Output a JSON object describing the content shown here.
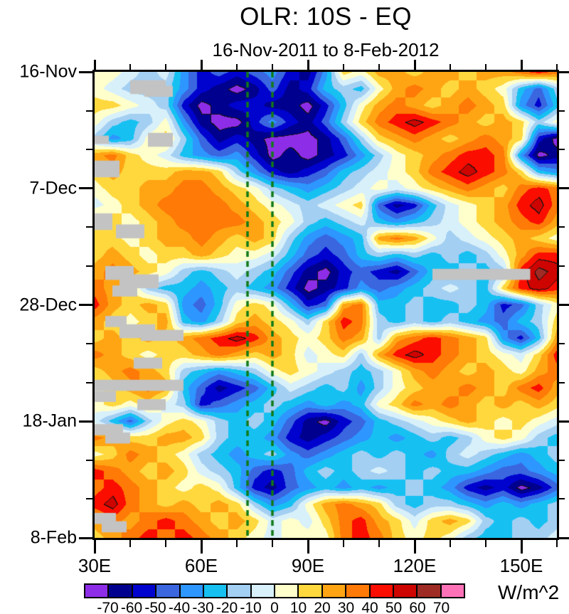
{
  "chart": {
    "title": "OLR: 10S - EQ",
    "subtitle": "16-Nov-2011 to 8-Feb-2012",
    "colorbar_unit": "W/m^2"
  },
  "chart_data": {
    "type": "heatmap",
    "title": "OLR: 10S - EQ",
    "subtitle": "16-Nov-2011 to 8-Feb-2012",
    "description": "Time-longitude (Hovmoller) plot of OLR anomalies averaged 10S-EQ",
    "x_axis": {
      "label_suffix": "E",
      "range": [
        30,
        160
      ],
      "major_ticks": [
        {
          "value": 30,
          "label": "30E"
        },
        {
          "value": 60,
          "label": "60E"
        },
        {
          "value": 90,
          "label": "90E"
        },
        {
          "value": 120,
          "label": "120E"
        },
        {
          "value": 150,
          "label": "150E"
        }
      ],
      "minor_ticks": [
        40,
        50,
        70,
        80,
        100,
        110,
        130,
        140,
        160
      ]
    },
    "y_axis": {
      "range_days": [
        0,
        84
      ],
      "major_ticks": [
        {
          "day": 0,
          "label": "16-Nov"
        },
        {
          "day": 21,
          "label": "7-Dec"
        },
        {
          "day": 42,
          "label": "28-Dec"
        },
        {
          "day": 63,
          "label": "18-Jan"
        },
        {
          "day": 84,
          "label": "8-Feb"
        }
      ],
      "minor_ticks": [
        7,
        14,
        28,
        35,
        49,
        56,
        70,
        77
      ]
    },
    "colorbar": {
      "unit": "W/m^2",
      "tick_labels": [
        "-70",
        "-60",
        "-50",
        "-40",
        "-30",
        "-20",
        "-10",
        "0",
        "10",
        "20",
        "30",
        "40",
        "50",
        "60",
        "70"
      ],
      "colors": [
        "#8D2DE8",
        "#00008F",
        "#0003CE",
        "#3A66E0",
        "#2E96FF",
        "#16C1F2",
        "#A3CFF2",
        "#D8F0FA",
        "#FFFFCC",
        "#FFD83E",
        "#FFA513",
        "#FF7A06",
        "#FB0D00",
        "#CE0400",
        "#9E2B24",
        "#FF72B8"
      ]
    },
    "missing_color": "#C3C3C3",
    "outline_color": "#141414",
    "reference_lines": {
      "lons": [
        73,
        80
      ],
      "color": "#107A18",
      "dash": [
        8,
        6
      ],
      "width": 3.5
    },
    "grid": {
      "lons": [
        30,
        35,
        40,
        45,
        50,
        55,
        60,
        65,
        70,
        75,
        80,
        85,
        90,
        95,
        100,
        105,
        110,
        115,
        120,
        125,
        130,
        135,
        140,
        145,
        150,
        155,
        160
      ],
      "days": [
        0,
        3,
        6,
        9,
        12,
        15,
        18,
        21,
        24,
        27,
        30,
        33,
        36,
        39,
        42,
        45,
        48,
        51,
        54,
        57,
        60,
        63,
        66,
        69,
        72,
        75,
        78,
        81,
        84
      ],
      "values": [
        [
          5,
          5,
          -5,
          -15,
          -5,
          -35,
          -55,
          -45,
          -55,
          -45,
          -35,
          -55,
          -65,
          -35,
          15,
          5,
          25,
          25,
          15,
          25,
          25,
          15,
          25,
          25,
          35,
          45,
          35
        ],
        [
          5,
          -5,
          -15,
          -15,
          -15,
          -35,
          -55,
          -65,
          -75,
          -65,
          -45,
          -65,
          -55,
          -25,
          -15,
          -25,
          5,
          25,
          35,
          25,
          15,
          25,
          15,
          5,
          -25,
          -45,
          -15
        ],
        [
          15,
          15,
          5,
          -5,
          -15,
          -55,
          -75,
          -65,
          -55,
          -55,
          -65,
          -65,
          -75,
          -55,
          -25,
          5,
          25,
          35,
          25,
          15,
          25,
          35,
          25,
          15,
          -35,
          -55,
          -25
        ],
        [
          5,
          -15,
          -25,
          -15,
          5,
          -35,
          -65,
          -75,
          -75,
          -55,
          -35,
          -55,
          -65,
          -45,
          -15,
          15,
          35,
          45,
          55,
          45,
          35,
          25,
          15,
          25,
          15,
          -15,
          5
        ],
        [
          -15,
          -35,
          -25,
          5,
          15,
          -15,
          -45,
          -65,
          -55,
          -65,
          -75,
          -75,
          -75,
          -65,
          -45,
          -15,
          15,
          25,
          35,
          25,
          15,
          25,
          35,
          25,
          15,
          -55,
          -75
        ],
        [
          25,
          35,
          15,
          5,
          -5,
          -25,
          -35,
          -45,
          -35,
          -55,
          -75,
          -65,
          -75,
          -65,
          -55,
          -35,
          -15,
          5,
          15,
          25,
          35,
          45,
          45,
          35,
          -35,
          -75,
          -65
        ],
        [
          15,
          25,
          15,
          15,
          15,
          25,
          25,
          15,
          -15,
          -35,
          -55,
          -65,
          -55,
          -45,
          -25,
          -15,
          -5,
          5,
          15,
          35,
          45,
          55,
          45,
          35,
          15,
          -25,
          -35
        ],
        [
          5,
          15,
          15,
          25,
          25,
          35,
          35,
          25,
          15,
          5,
          -15,
          -25,
          -35,
          -25,
          -15,
          -5,
          5,
          -5,
          5,
          15,
          25,
          35,
          25,
          15,
          35,
          45,
          35
        ],
        [
          -5,
          5,
          15,
          25,
          35,
          35,
          35,
          35,
          25,
          15,
          5,
          -5,
          -15,
          -5,
          5,
          15,
          -45,
          -65,
          -55,
          -25,
          -5,
          5,
          15,
          25,
          45,
          55,
          35
        ],
        [
          25,
          15,
          5,
          15,
          25,
          35,
          35,
          35,
          35,
          25,
          15,
          5,
          -15,
          -25,
          -15,
          -5,
          -25,
          -35,
          -25,
          -15,
          -5,
          5,
          15,
          25,
          35,
          45,
          25
        ],
        [
          15,
          15,
          5,
          15,
          25,
          25,
          35,
          25,
          15,
          25,
          15,
          -15,
          -35,
          -45,
          -35,
          -25,
          25,
          35,
          25,
          5,
          -15,
          -5,
          5,
          15,
          25,
          15,
          5
        ],
        [
          15,
          25,
          15,
          5,
          15,
          15,
          25,
          15,
          5,
          5,
          -5,
          -25,
          -45,
          -55,
          -45,
          -25,
          -15,
          -25,
          -15,
          -25,
          -15,
          -25,
          -15,
          5,
          25,
          45,
          45
        ],
        [
          25,
          35,
          25,
          15,
          5,
          -15,
          -25,
          -15,
          -5,
          -15,
          -25,
          -45,
          -65,
          -75,
          -55,
          -45,
          -55,
          -65,
          -45,
          -25,
          -25,
          -15,
          -25,
          -15,
          45,
          65,
          55
        ],
        [
          35,
          25,
          15,
          -15,
          -25,
          -25,
          -35,
          -25,
          -15,
          -25,
          -35,
          -55,
          -75,
          -65,
          -55,
          -35,
          -45,
          -35,
          -25,
          -15,
          -5,
          -15,
          -25,
          15,
          45,
          55,
          45
        ],
        [
          45,
          25,
          15,
          25,
          15,
          -35,
          -45,
          -25,
          5,
          15,
          5,
          -25,
          -55,
          -45,
          25,
          35,
          -25,
          -25,
          -15,
          -25,
          -25,
          -15,
          -25,
          -55,
          -45,
          -15,
          5
        ],
        [
          25,
          15,
          5,
          15,
          25,
          -25,
          -35,
          -15,
          15,
          25,
          15,
          5,
          -15,
          15,
          45,
          35,
          -15,
          -25,
          -15,
          -25,
          -15,
          -25,
          -35,
          -45,
          -25,
          -15,
          15
        ],
        [
          15,
          25,
          15,
          25,
          15,
          25,
          35,
          45,
          55,
          45,
          25,
          15,
          5,
          15,
          35,
          25,
          -15,
          25,
          35,
          45,
          35,
          25,
          15,
          -35,
          -55,
          -25,
          25
        ],
        [
          35,
          25,
          15,
          5,
          15,
          15,
          25,
          35,
          25,
          15,
          25,
          15,
          -5,
          5,
          15,
          -15,
          25,
          45,
          55,
          45,
          35,
          25,
          15,
          5,
          -5,
          15,
          45
        ],
        [
          15,
          25,
          35,
          25,
          15,
          -15,
          -25,
          -35,
          -25,
          -15,
          5,
          15,
          5,
          -5,
          -15,
          -25,
          -15,
          5,
          25,
          35,
          25,
          15,
          25,
          15,
          5,
          25,
          35
        ],
        [
          5,
          15,
          25,
          35,
          25,
          -25,
          -45,
          -65,
          -55,
          -45,
          -25,
          -5,
          -15,
          -25,
          -15,
          -35,
          -15,
          5,
          15,
          25,
          25,
          35,
          25,
          15,
          35,
          45,
          25
        ],
        [
          5,
          15,
          5,
          15,
          -5,
          -15,
          -55,
          -45,
          -35,
          -25,
          -15,
          -25,
          -35,
          -25,
          -35,
          -25,
          5,
          15,
          35,
          25,
          35,
          25,
          15,
          25,
          15,
          25,
          15
        ],
        [
          -5,
          -25,
          -45,
          -15,
          5,
          15,
          5,
          -15,
          -25,
          -15,
          -25,
          -45,
          -65,
          -75,
          -55,
          -45,
          -25,
          -15,
          -5,
          5,
          15,
          25,
          15,
          5,
          15,
          5,
          -5
        ],
        [
          35,
          25,
          15,
          15,
          25,
          25,
          15,
          -15,
          -25,
          -25,
          -35,
          -55,
          -65,
          -55,
          -45,
          -35,
          -25,
          -35,
          -25,
          -15,
          -25,
          -15,
          5,
          15,
          5,
          -15,
          -25
        ],
        [
          5,
          15,
          35,
          25,
          15,
          5,
          -15,
          -25,
          -35,
          -25,
          -15,
          -35,
          -45,
          -35,
          -25,
          -15,
          -25,
          -15,
          -25,
          -35,
          -15,
          -5,
          -15,
          -25,
          -35,
          -25,
          -15
        ],
        [
          45,
          35,
          25,
          15,
          25,
          15,
          -5,
          -15,
          -25,
          -45,
          -55,
          -45,
          -25,
          -15,
          -25,
          -15,
          -5,
          -15,
          -25,
          -15,
          -25,
          -25,
          -35,
          -45,
          -45,
          -35,
          -25
        ],
        [
          35,
          45,
          35,
          25,
          15,
          5,
          15,
          5,
          -25,
          -55,
          -65,
          -45,
          -35,
          -25,
          -35,
          -25,
          -35,
          -25,
          -15,
          -25,
          -35,
          -55,
          -65,
          -55,
          -75,
          -65,
          -45
        ],
        [
          45,
          55,
          35,
          25,
          15,
          25,
          15,
          25,
          15,
          -15,
          -35,
          -25,
          5,
          25,
          35,
          25,
          15,
          -15,
          -25,
          -15,
          -15,
          -25,
          -35,
          -25,
          -35,
          -25,
          -15
        ],
        [
          25,
          35,
          25,
          35,
          45,
          35,
          25,
          15,
          25,
          15,
          -5,
          5,
          -5,
          15,
          35,
          45,
          25,
          15,
          -5,
          15,
          25,
          15,
          -15,
          -25,
          -15,
          -25,
          -15
        ],
        [
          15,
          25,
          35,
          45,
          35,
          45,
          35,
          25,
          15,
          5,
          -5,
          5,
          5,
          5,
          35,
          45,
          35,
          15,
          5,
          15,
          5,
          -15,
          -25,
          -25,
          -15,
          -15,
          -5
        ]
      ]
    },
    "missing_patches": [
      [
        40,
        50,
        1.5,
        4
      ],
      [
        44,
        52,
        2.5,
        4.5
      ],
      [
        30,
        34,
        11.5,
        13
      ],
      [
        45,
        52,
        11,
        13.5
      ],
      [
        30,
        37,
        16,
        19
      ],
      [
        30,
        35,
        25.5,
        28.5
      ],
      [
        36,
        44,
        27.5,
        30
      ],
      [
        33,
        41,
        35,
        37.5
      ],
      [
        37,
        48,
        36.5,
        39
      ],
      [
        35,
        42,
        38.5,
        40.5
      ],
      [
        125,
        152.5,
        35.5,
        37.5
      ],
      [
        33,
        39,
        44,
        46
      ],
      [
        37,
        47,
        45.5,
        48
      ],
      [
        43,
        55,
        46.5,
        48.5
      ],
      [
        41,
        49,
        51.5,
        53.5
      ],
      [
        30,
        55,
        55.5,
        57.5
      ],
      [
        30,
        36,
        57.5,
        59.5
      ],
      [
        42,
        50,
        59,
        61
      ],
      [
        30,
        38,
        63.5,
        65.5
      ],
      [
        33,
        40,
        65,
        67
      ],
      [
        30,
        36,
        79.5,
        81.5
      ],
      [
        32,
        39,
        81,
        83
      ]
    ]
  }
}
